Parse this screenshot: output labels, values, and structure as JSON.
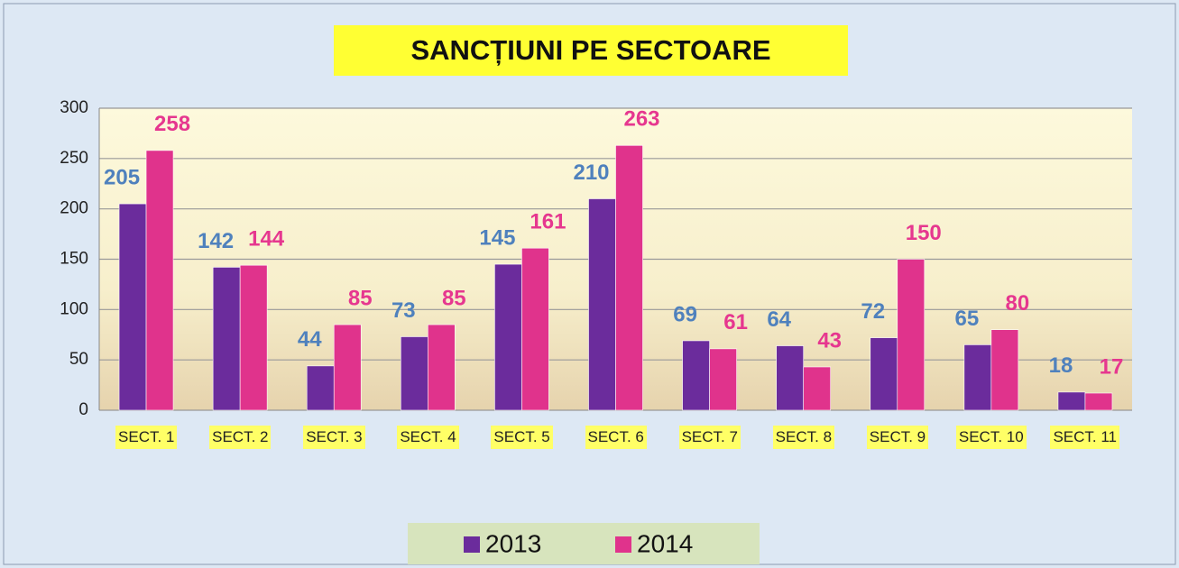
{
  "chart_data": {
    "type": "bar",
    "title": "SANCȚIUNI PE SECTOARE",
    "categories": [
      "SECT. 1",
      "SECT. 2",
      "SECT. 3",
      "SECT. 4",
      "SECT. 5",
      "SECT. 6",
      "SECT. 7",
      "SECT. 8",
      "SECT. 9",
      "SECT. 10",
      "SECT. 11"
    ],
    "series": [
      {
        "name": "2013",
        "color": "#6b2c9c",
        "label_color": "#4f81bd",
        "values": [
          205,
          142,
          44,
          73,
          145,
          210,
          69,
          64,
          72,
          65,
          18
        ]
      },
      {
        "name": "2014",
        "color": "#e0338c",
        "label_color": "#e6378f",
        "values": [
          258,
          144,
          85,
          85,
          161,
          263,
          61,
          43,
          150,
          80,
          17
        ]
      }
    ],
    "ylim": [
      0,
      300
    ],
    "yticks": [
      0,
      50,
      100,
      150,
      200,
      250,
      300
    ],
    "grid": true,
    "legend": "bottom"
  }
}
